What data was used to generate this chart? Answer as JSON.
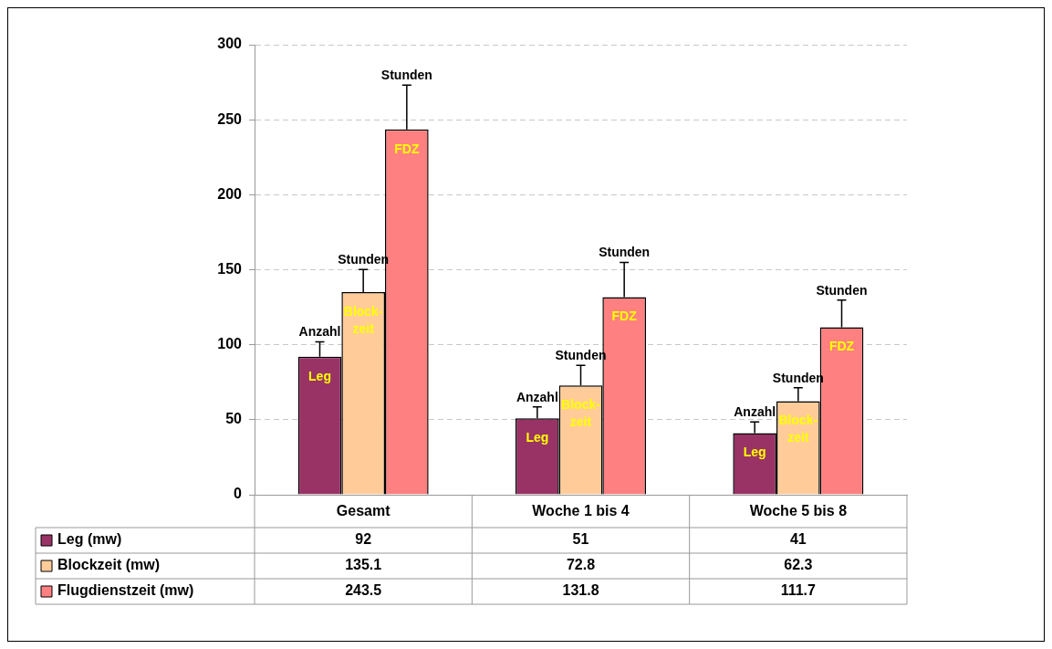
{
  "chart_data": {
    "type": "bar",
    "categories": [
      "Gesamt",
      "Woche 1 bis 4",
      "Woche 5 bis 8"
    ],
    "series": [
      {
        "name": "Leg (mw)",
        "color": "#993366",
        "values": [
          92,
          51,
          41
        ],
        "errors": [
          10,
          7.5,
          7.5
        ]
      },
      {
        "name": "Blockzeit (mw)",
        "color": "#ffcc99",
        "values": [
          135.1,
          72.8,
          62.3
        ],
        "errors": [
          15,
          13.5,
          9
        ]
      },
      {
        "name": "Flugdienstzeit (mw)",
        "color": "#ff8080",
        "values": [
          243.5,
          131.8,
          111.7
        ],
        "errors": [
          29.5,
          23,
          18
        ]
      }
    ],
    "ylim": [
      0,
      300
    ],
    "yticks": [
      0,
      50,
      100,
      150,
      200,
      250,
      300
    ],
    "grid": "y",
    "legend": "bottom",
    "data_labels": true,
    "annotations": [
      "Anzahl",
      "Leg",
      "Stunden",
      "Block-\nzeit",
      "Stunden",
      "FDZ",
      "Anzahl",
      "Leg",
      "Stunden",
      "Block-\nzeit",
      "Stunden",
      "FDZ",
      "Anzahl",
      "Leg",
      "Stunden",
      "Block-\nzeit",
      "Stunden",
      "FDZ"
    ]
  }
}
